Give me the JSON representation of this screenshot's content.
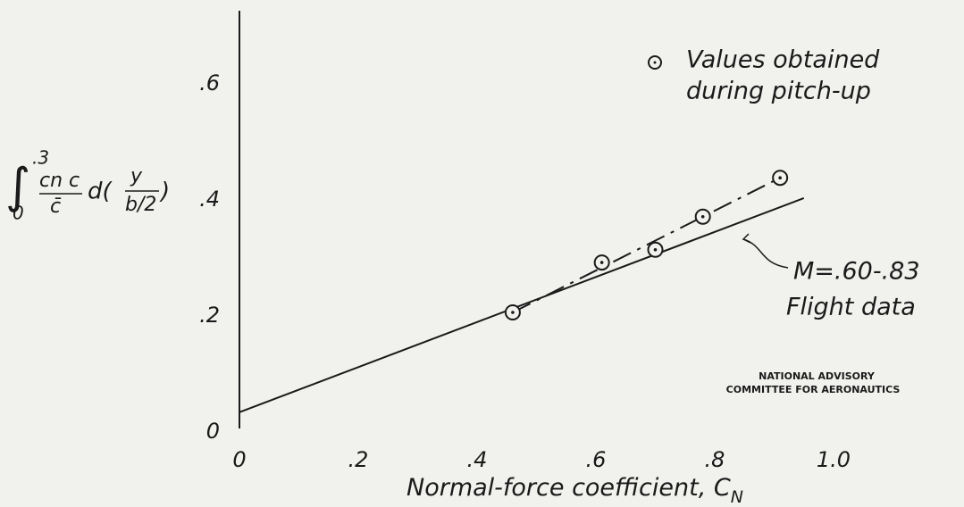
{
  "chart_data": {
    "type": "scatter",
    "x_label": {
      "text": "Normal-force coefficient, C",
      "subscript": "N"
    },
    "y_label": {
      "integral_upper": ".3",
      "integral_lower": "0",
      "numerator": "cn c",
      "denominator": "c̄",
      "differential": "d(",
      "inner_numerator": "y",
      "inner_denominator": "b/2",
      "close": ")"
    },
    "xlim": [
      0,
      1.1
    ],
    "ylim": [
      0,
      0.72
    ],
    "xticks": [
      0,
      {
        "value": 0.2,
        "label": ".2"
      },
      {
        "value": 0.4,
        "label": ".4"
      },
      {
        "value": 0.6,
        "label": ".6"
      },
      {
        "value": 0.8,
        "label": ".8"
      },
      {
        "value": 1.0,
        "label": "1.0"
      }
    ],
    "yticks": [
      0,
      {
        "value": 0.2,
        "label": ".2"
      },
      {
        "value": 0.4,
        "label": ".4"
      },
      {
        "value": 0.6,
        "label": ".6"
      }
    ],
    "grid": false,
    "series": [
      {
        "name": "Values obtained during pitch-up",
        "color": "#1a1a1a",
        "x": [
          0.46,
          0.61,
          0.7,
          0.78,
          0.91
        ],
        "values": [
          0.2,
          0.286,
          0.308,
          0.365,
          0.432
        ]
      }
    ],
    "lines": [
      {
        "style": "solid",
        "color": "#1a1a1a",
        "x": [
          0,
          0.95
        ],
        "values": [
          0.028,
          0.397
        ]
      },
      {
        "style": "dashed",
        "color": "#1a1a1a",
        "x": [
          0.46,
          0.91
        ],
        "values": [
          0.2,
          0.432
        ]
      }
    ],
    "legend_second_line": "during pitch-up",
    "legend_first_line": "Values obtained",
    "annotations": [
      "M=.60-.83",
      "Flight data"
    ],
    "credit": [
      "NATIONAL ADVISORY",
      "COMMITTEE FOR AERONAUTICS"
    ]
  }
}
